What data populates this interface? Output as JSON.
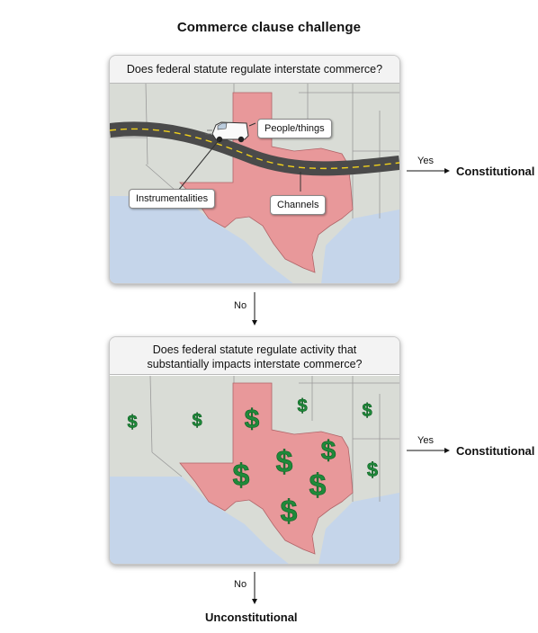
{
  "title": "Commerce clause challenge",
  "panel1": {
    "question": "Does federal statute regulate interstate commerce?",
    "labels": {
      "people_things": "People/things",
      "instrumentalities": "Instrumentalities",
      "channels": "Channels"
    }
  },
  "panel2": {
    "question_line1": "Does federal statute regulate activity that",
    "question_line2": "substantially impacts interstate commerce?"
  },
  "flow": {
    "yes1": "Yes",
    "constitutional1": "Constitutional",
    "no1": "No",
    "yes2": "Yes",
    "constitutional2": "Constitutional",
    "no2": "No",
    "unconstitutional": "Unconstitutional"
  },
  "colors": {
    "texas": "#e8989a",
    "land": "#d9dcd6",
    "water": "#c5d5ea",
    "road": "#4a4a4a",
    "road_line": "#f2d21b",
    "dollar": "#1f8a3a"
  }
}
